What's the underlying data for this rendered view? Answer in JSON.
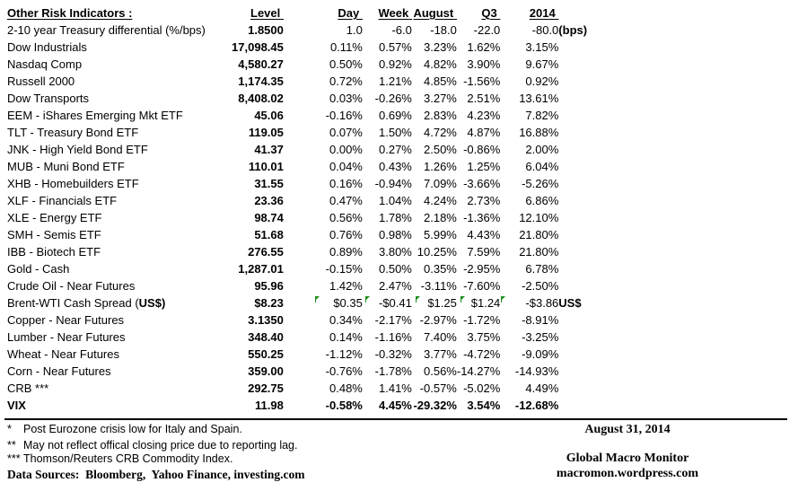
{
  "table": {
    "title": "Other Risk Indicators :",
    "columns": {
      "level": "Level",
      "day": "Day",
      "week": "Week",
      "august": "August",
      "q3": "Q3",
      "y2014": "2014"
    },
    "rows": [
      {
        "label": "2-10 year Treasury differential (%/bps)",
        "level": "1.8500",
        "day": "1.0",
        "week": "-6.0",
        "august": "-18.0",
        "q3": "-22.0",
        "y2014": "-80.0",
        "suffix": "(bps)"
      },
      {
        "label": "Dow Industrials",
        "level": "17,098.45",
        "day": "0.11%",
        "week": "0.57%",
        "august": "3.23%",
        "q3": "1.62%",
        "y2014": "3.15%",
        "suffix": ""
      },
      {
        "label": "Nasdaq Comp",
        "level": "4,580.27",
        "day": "0.50%",
        "week": "0.92%",
        "august": "4.82%",
        "q3": "3.90%",
        "y2014": "9.67%",
        "suffix": ""
      },
      {
        "label": "Russell 2000",
        "level": "1,174.35",
        "day": "0.72%",
        "week": "1.21%",
        "august": "4.85%",
        "q3": "-1.56%",
        "y2014": "0.92%",
        "suffix": ""
      },
      {
        "label": "Dow Transports",
        "level": "8,408.02",
        "day": "0.03%",
        "week": "-0.26%",
        "august": "3.27%",
        "q3": "2.51%",
        "y2014": "13.61%",
        "suffix": ""
      },
      {
        "label": "EEM - iShares Emerging Mkt ETF",
        "level": "45.06",
        "day": "-0.16%",
        "week": "0.69%",
        "august": "2.83%",
        "q3": "4.23%",
        "y2014": "7.82%",
        "suffix": ""
      },
      {
        "label": "TLT - Treasury Bond ETF",
        "level": "119.05",
        "day": "0.07%",
        "week": "1.50%",
        "august": "4.72%",
        "q3": "4.87%",
        "y2014": "16.88%",
        "suffix": ""
      },
      {
        "label": "JNK - High Yield Bond ETF",
        "level": "41.37",
        "day": "0.00%",
        "week": "0.27%",
        "august": "2.50%",
        "q3": "-0.86%",
        "y2014": "2.00%",
        "suffix": ""
      },
      {
        "label": "MUB - Muni Bond ETF",
        "level": "110.01",
        "day": "0.04%",
        "week": "0.43%",
        "august": "1.26%",
        "q3": "1.25%",
        "y2014": "6.04%",
        "suffix": ""
      },
      {
        "label": "XHB - Homebuilders ETF",
        "level": "31.55",
        "day": "0.16%",
        "week": "-0.94%",
        "august": "7.09%",
        "q3": "-3.66%",
        "y2014": "-5.26%",
        "suffix": ""
      },
      {
        "label": "XLF - Financials ETF",
        "level": "23.36",
        "day": "0.47%",
        "week": "1.04%",
        "august": "4.24%",
        "q3": "2.73%",
        "y2014": "6.86%",
        "suffix": ""
      },
      {
        "label": "XLE - Energy ETF",
        "level": "98.74",
        "day": "0.56%",
        "week": "1.78%",
        "august": "2.18%",
        "q3": "-1.36%",
        "y2014": "12.10%",
        "suffix": ""
      },
      {
        "label": "SMH - Semis ETF",
        "level": "51.68",
        "day": "0.76%",
        "week": "0.98%",
        "august": "5.99%",
        "q3": "4.43%",
        "y2014": "21.80%",
        "suffix": ""
      },
      {
        "label": "IBB - Biotech ETF",
        "level": "276.55",
        "day": "0.89%",
        "week": "3.80%",
        "august": "10.25%",
        "q3": "7.59%",
        "y2014": "21.80%",
        "suffix": ""
      },
      {
        "label": "Gold - Cash",
        "level": "1,287.01",
        "day": "-0.15%",
        "week": "0.50%",
        "august": "0.35%",
        "q3": "-2.95%",
        "y2014": "6.78%",
        "suffix": ""
      },
      {
        "label": "Crude Oil - Near Futures",
        "level": "95.96",
        "day": "1.42%",
        "week": "2.47%",
        "august": "-3.11%",
        "q3": "-7.60%",
        "y2014": "-2.50%",
        "suffix": ""
      },
      {
        "label": "Brent-WTI Cash Spread (",
        "label_bold": "US$)",
        "level": "$8.23",
        "day": "$0.35",
        "week": "-$0.41",
        "august": "$1.25",
        "q3": "$1.24",
        "y2014": "-$3.86",
        "suffix": "US$",
        "flags": true
      },
      {
        "label": "Copper - Near Futures",
        "level": "3.1350",
        "day": "0.34%",
        "week": "-2.17%",
        "august": "-2.97%",
        "q3": "-1.72%",
        "y2014": "-8.91%",
        "suffix": ""
      },
      {
        "label": "Lumber - Near Futures",
        "level": "348.40",
        "day": "0.14%",
        "week": "-1.16%",
        "august": "7.40%",
        "q3": "3.75%",
        "y2014": "-3.25%",
        "suffix": ""
      },
      {
        "label": "Wheat - Near Futures",
        "level": "550.25",
        "day": "-1.12%",
        "week": "-0.32%",
        "august": "3.77%",
        "q3": "-4.72%",
        "y2014": "-9.09%",
        "suffix": ""
      },
      {
        "label": "Corn - Near Futures",
        "level": "359.00",
        "day": "-0.76%",
        "week": "-1.78%",
        "august": "0.56%",
        "q3": "-14.27%",
        "y2014": "-14.93%",
        "suffix": ""
      },
      {
        "label": "CRB ***",
        "level": "292.75",
        "day": "0.48%",
        "week": "1.41%",
        "august": "-0.57%",
        "q3": "-5.02%",
        "y2014": "4.49%",
        "suffix": ""
      },
      {
        "label": "VIX",
        "level": "11.98",
        "day": "-0.58%",
        "week": "4.45%",
        "august": "-29.32%",
        "q3": "3.54%",
        "y2014": "-12.68%",
        "suffix": "",
        "bold": true
      }
    ]
  },
  "footnotes": [
    {
      "marker": "*",
      "text": "Post Eurozone crisis low for Italy and Spain."
    },
    {
      "marker": "**",
      "text": "May not reflect offical closing price due to reporting lag."
    },
    {
      "marker": "***",
      "text": "Thomson/Reuters CRB Commodity Index."
    }
  ],
  "data_sources": {
    "label": "Data Sources:",
    "text": "  Bloomberg,  Yahoo Finance, investing.com"
  },
  "footer_right": {
    "date": "August 31, 2014",
    "site": "Global Macro Monitor",
    "url": "macromon.wordpress.com"
  },
  "colors": {
    "flag_green": "#1e8e1e"
  }
}
